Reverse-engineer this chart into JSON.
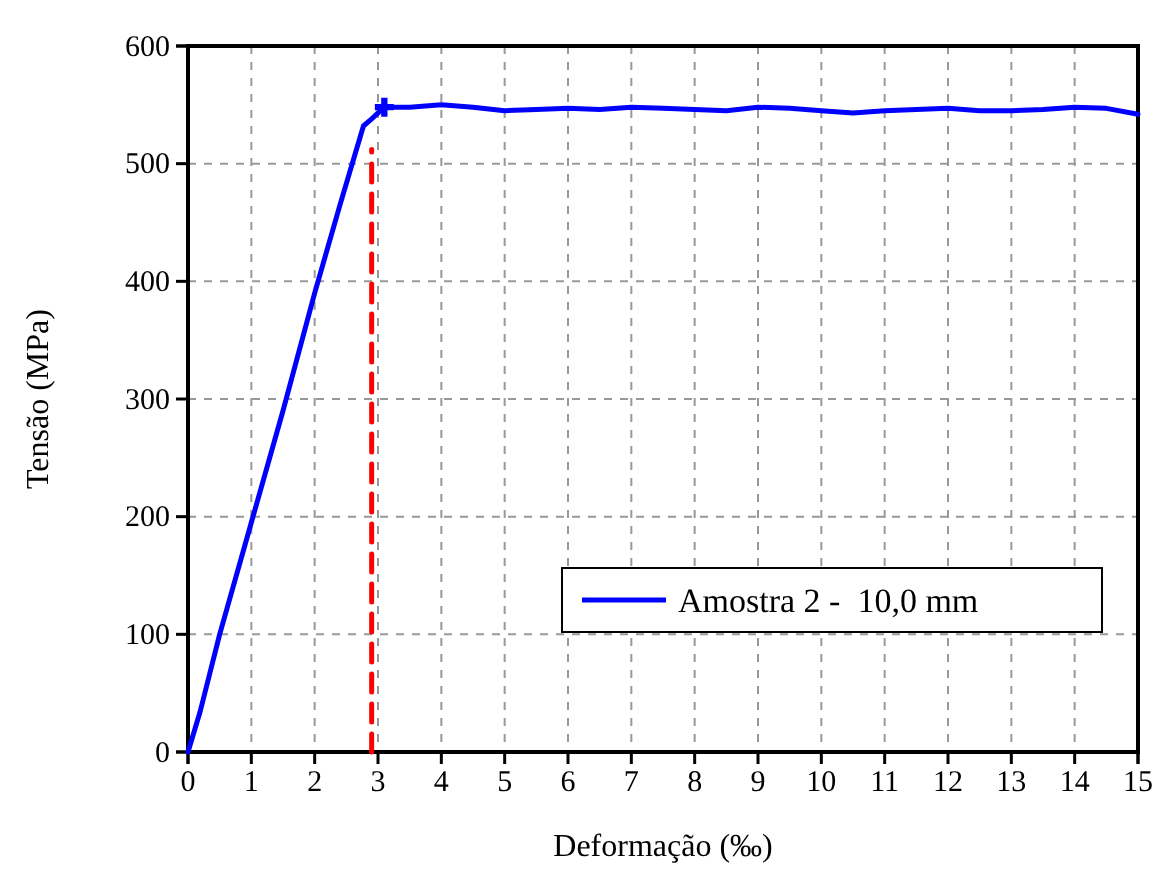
{
  "chart_data": {
    "type": "line",
    "xlabel": "Deformação (‰)",
    "ylabel": "Tensão (MPa)",
    "xlim": [
      0,
      15
    ],
    "ylim": [
      0,
      600
    ],
    "xticks": [
      0,
      1,
      2,
      3,
      4,
      5,
      6,
      7,
      8,
      9,
      10,
      11,
      12,
      13,
      14,
      15
    ],
    "yticks": [
      0,
      100,
      200,
      300,
      400,
      500,
      600
    ],
    "grid": true,
    "legend": "bottom right",
    "line_style": "solid",
    "series": [
      {
        "name": "Amostra 2 -  10,0 mm",
        "color": "#0000ff",
        "x": [
          0,
          0.19,
          0.5,
          1,
          1.5,
          2,
          2.4,
          2.77,
          2.9,
          3.1,
          3.5,
          4,
          4.5,
          5,
          5.5,
          6,
          6.5,
          7,
          7.5,
          8,
          8.5,
          9,
          9.5,
          10,
          10.5,
          11,
          11.5,
          12,
          12.5,
          13,
          13.5,
          14,
          14.5,
          15
        ],
        "values": [
          0,
          34,
          100,
          195,
          290,
          390,
          465,
          532,
          538,
          548,
          548,
          550,
          548,
          545,
          546,
          547,
          546,
          548,
          547,
          546,
          545,
          548,
          547,
          545,
          543,
          545,
          546,
          547,
          545,
          545,
          546,
          548,
          547,
          542
        ]
      },
      {
        "type": "scatter",
        "marker": "cross",
        "color": "#0000ff",
        "x": [
          3.1
        ],
        "values": [
          548
        ]
      },
      {
        "type": "line",
        "line_style": "dashed",
        "color": "#ff0000",
        "x": [
          2.9,
          2.9
        ],
        "values": [
          0,
          512
        ]
      }
    ]
  }
}
